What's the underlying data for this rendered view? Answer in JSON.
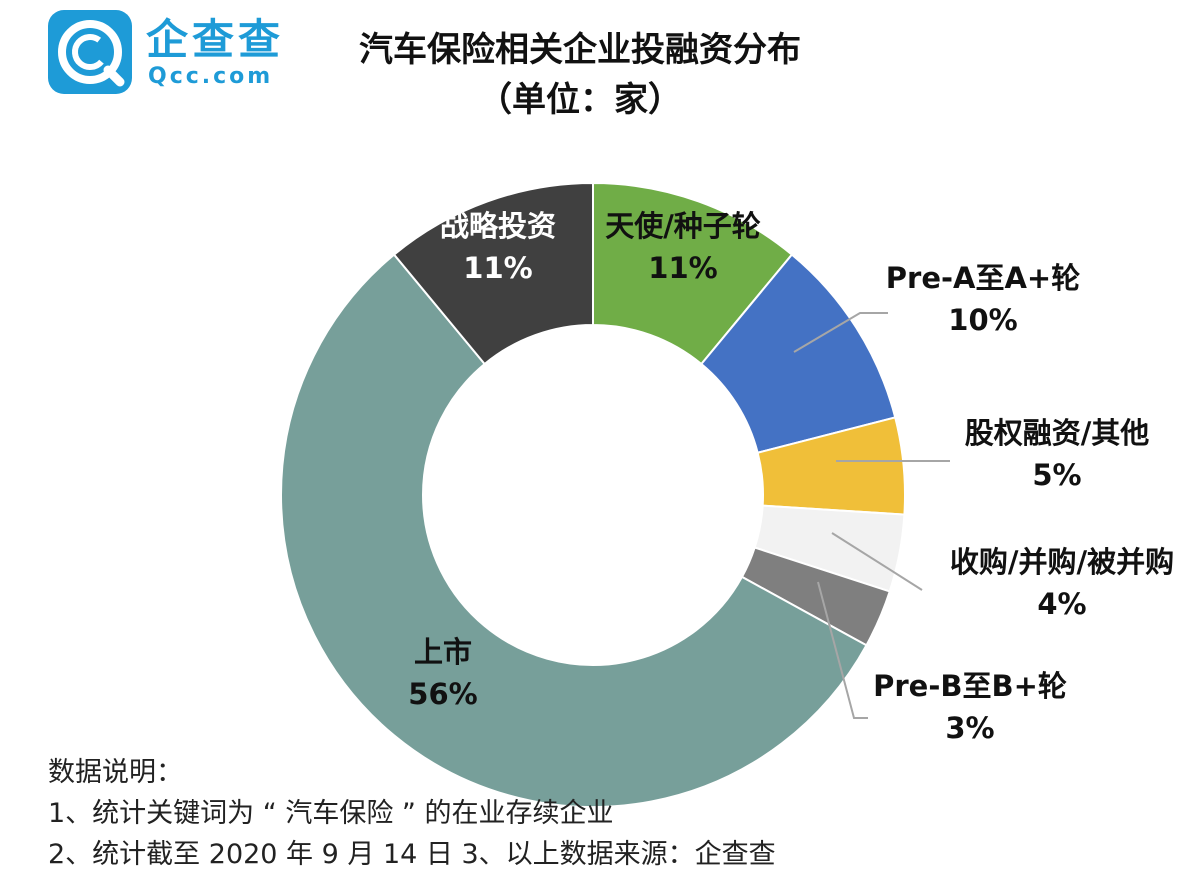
{
  "brand": {
    "name_cn": "企查查",
    "url": "Qcc.com",
    "logo_letter": "C",
    "color": "#1e9bd7"
  },
  "title": "汽车保险相关企业投融资分布",
  "subtitle": "（单位：家）",
  "chart_data": {
    "type": "pie",
    "variant": "donut",
    "title": "汽车保险相关企业投融资分布",
    "subtitle": "（单位：家）",
    "start": "12 o'clock, clockwise",
    "slices": [
      {
        "label": "天使/种子轮",
        "value_text": "11%",
        "percent": 11,
        "color": "#70ad47"
      },
      {
        "label": "Pre-A至A+轮",
        "value_text": "10%",
        "percent": 10,
        "color": "#4472c4"
      },
      {
        "label": "股权融资/其他",
        "value_text": "5%",
        "percent": 5,
        "color": "#f0bf39"
      },
      {
        "label": "收购/并购/被并购",
        "value_text": "4%",
        "percent": 4,
        "color": "#f2f2f2"
      },
      {
        "label": "Pre-B至B+轮",
        "value_text": "3%",
        "percent": 3,
        "color": "#7f7f7f"
      },
      {
        "label": "上市",
        "value_text": "56%",
        "percent": 56,
        "color": "#779f9a"
      },
      {
        "label": "战略投资",
        "value_text": "11%",
        "percent": 11,
        "color": "#404040"
      }
    ]
  },
  "notes": {
    "heading": "数据说明：",
    "line1": "1、统计关键词为 “ 汽车保险 ” 的在业存续企业",
    "line2": "2、统计截至 2020 年 9 月 14 日  3、以上数据来源：企查查"
  }
}
